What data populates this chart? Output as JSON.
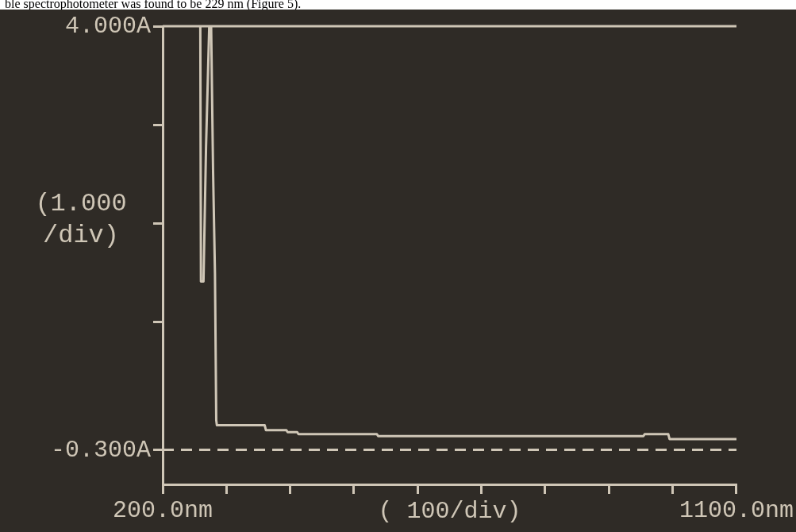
{
  "chart_data": {
    "type": "line",
    "annotations": [
      "ble spectrophotometer was found to be 229 nm (Figure 5)."
    ],
    "xlabel": "( 100/div)",
    "ylabel": "(1.000 /div)",
    "series": [
      {
        "color": "#cfc6b6",
        "x": [
          259,
          260,
          264,
          268,
          273,
          276,
          279,
          282,
          284,
          285,
          360,
          362,
          394,
          396,
          411,
          413,
          536,
          538,
          954,
          956,
          965,
          993,
          995,
          1100
        ],
        "values": [
          4.0,
          1.41,
          1.41,
          2.78,
          4.0,
          4.0,
          2.54,
          1.49,
          0.0,
          -0.05,
          -0.05,
          -0.1,
          -0.1,
          -0.12,
          -0.12,
          -0.14,
          -0.14,
          -0.16,
          -0.16,
          -0.14,
          -0.14,
          -0.14,
          -0.19,
          -0.19
        ]
      }
    ],
    "xlim": [
      200,
      1100
    ],
    "xticks": [
      {
        "value": 200,
        "label": "200.0nm"
      },
      {
        "value": 300,
        "label": null
      },
      {
        "value": 400,
        "label": null
      },
      {
        "value": 500,
        "label": null
      },
      {
        "value": 600,
        "label": null
      },
      {
        "value": 700,
        "label": null
      },
      {
        "value": 800,
        "label": null
      },
      {
        "value": 900,
        "label": null
      },
      {
        "value": 1000,
        "label": null
      },
      {
        "value": 1100,
        "label": "1100.0nm"
      }
    ],
    "ylim": [
      -0.65,
      4.0
    ],
    "yticks": [
      {
        "value": -0.3,
        "label": "-0.300A"
      },
      {
        "value": 1,
        "label": null
      },
      {
        "value": 2,
        "label": null
      },
      {
        "value": 3,
        "label": null
      },
      {
        "value": 4,
        "label": "4.000A"
      }
    ],
    "ref_lines": [
      {
        "axis": "y",
        "value": -0.3,
        "color": "#cfc6b6",
        "line_style": "dashed"
      }
    ],
    "grid": false,
    "legend": false,
    "marker": "none",
    "line_style": "solid"
  }
}
